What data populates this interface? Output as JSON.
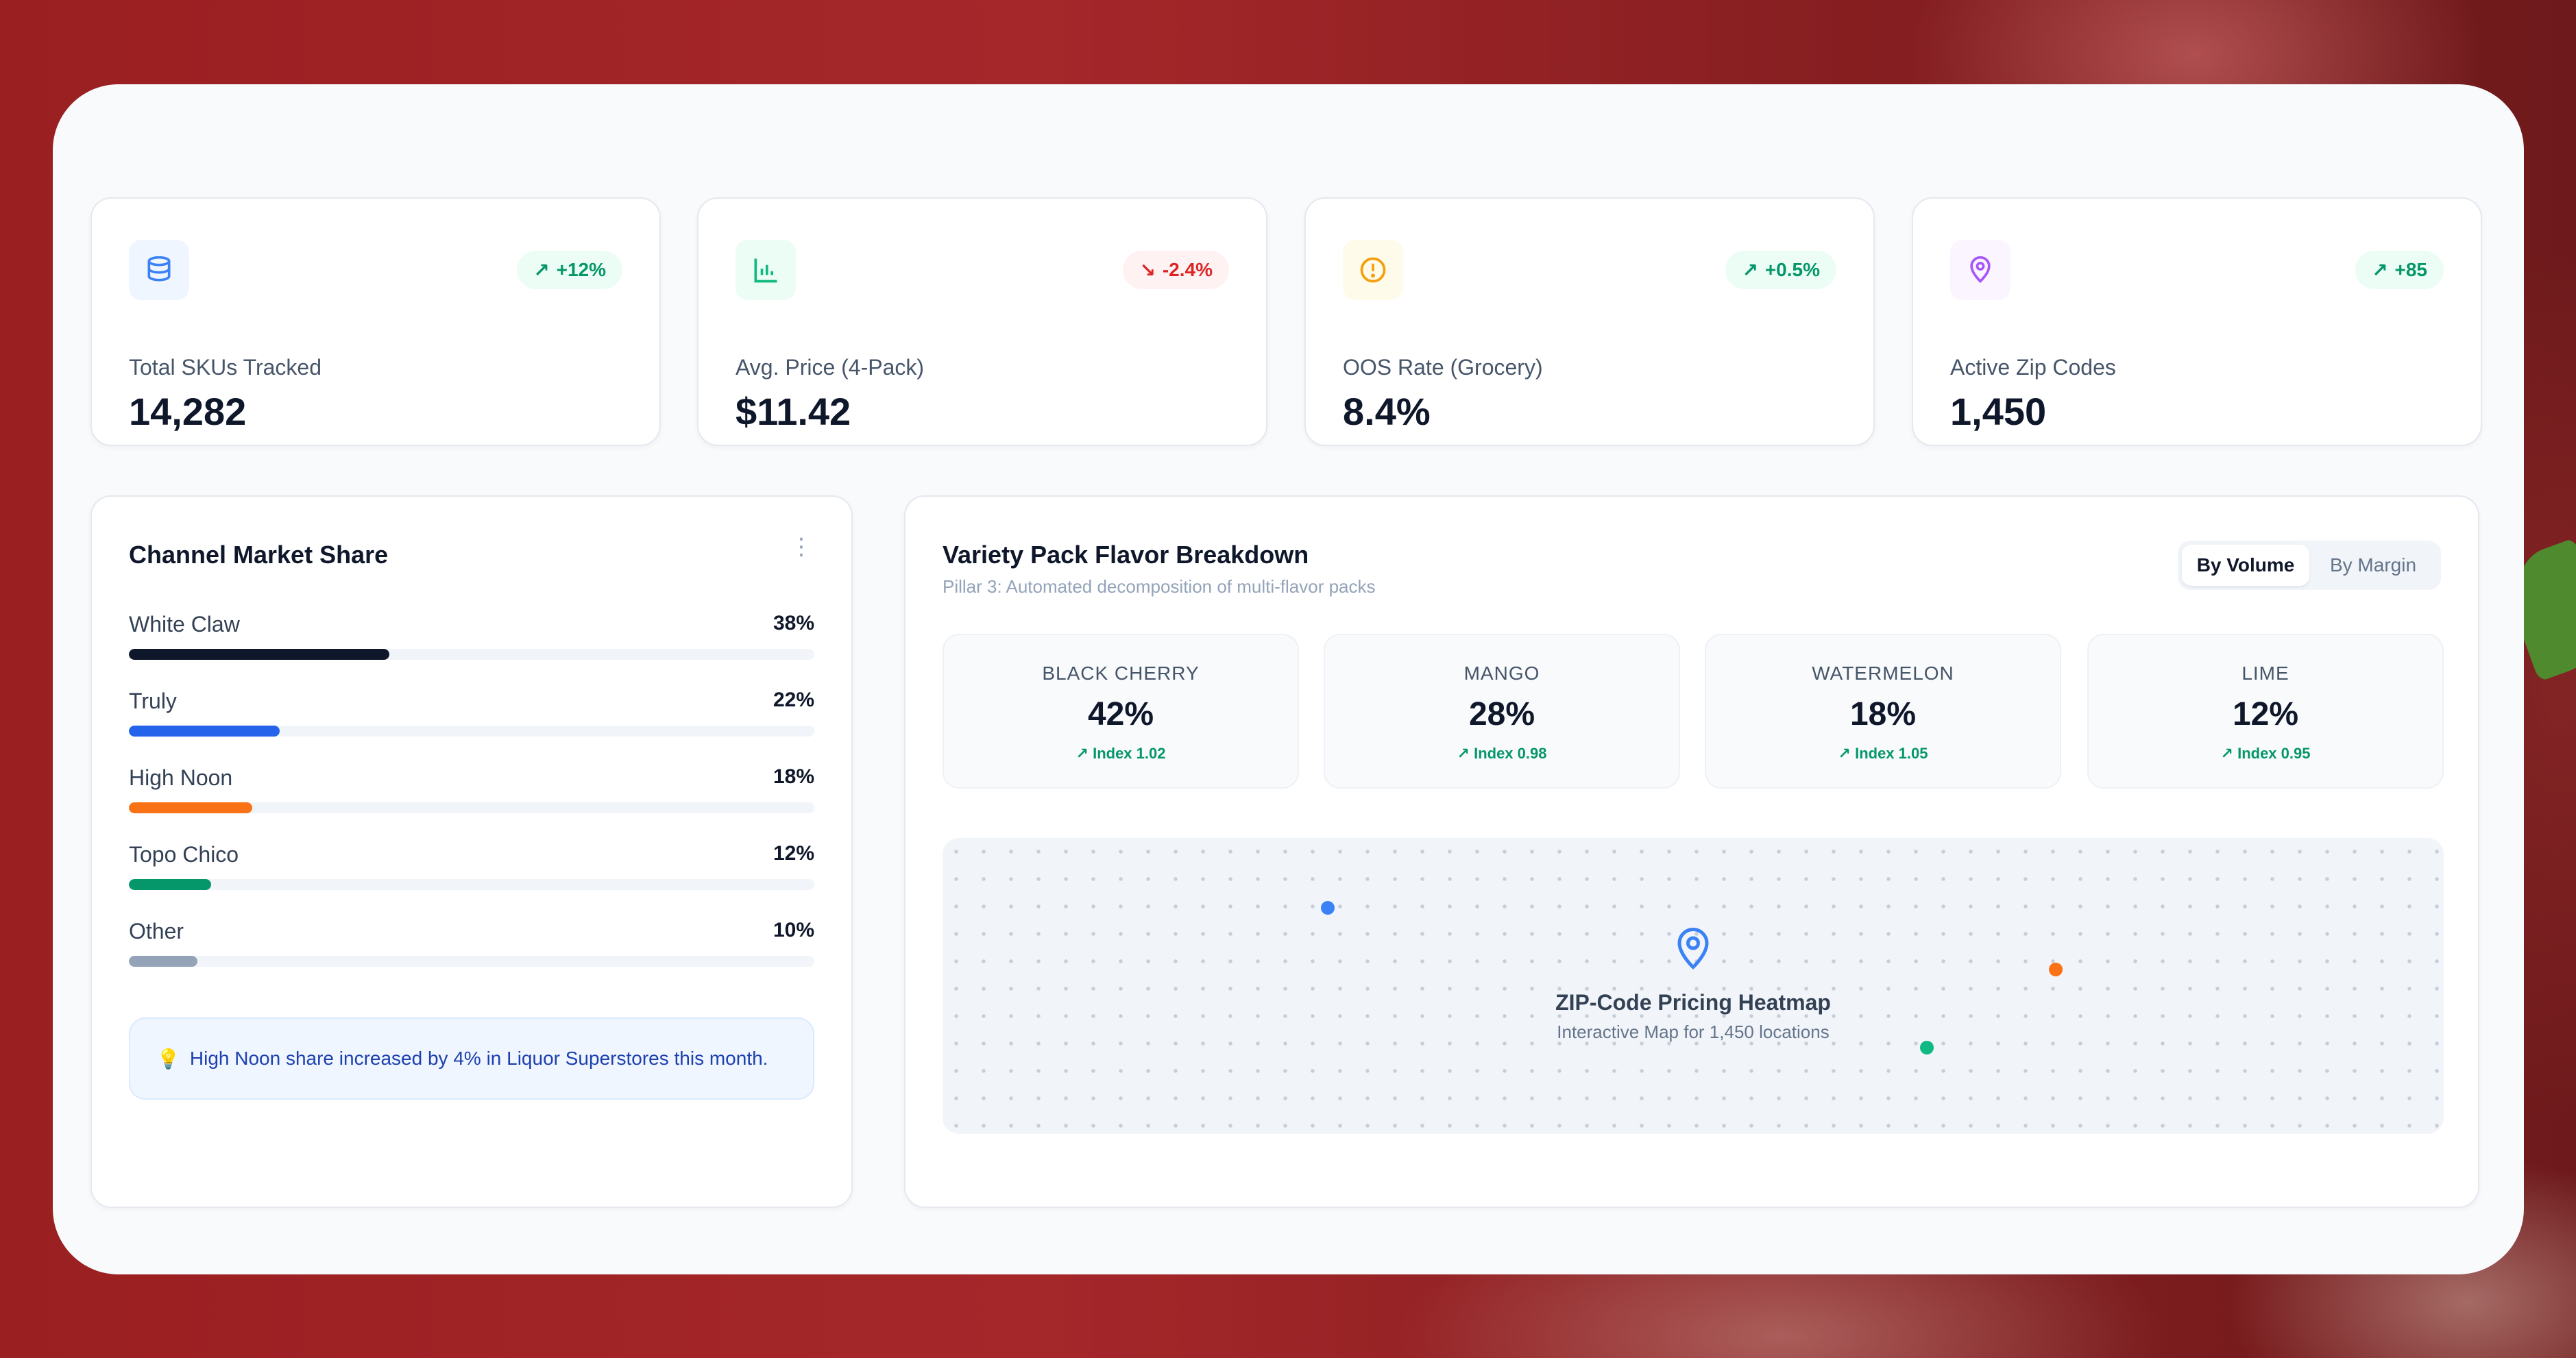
{
  "colors": {
    "accent_blue": "#2563eb",
    "positive": "#059669",
    "negative": "#dc2626"
  },
  "kpis": [
    {
      "label": "Total SKUs Tracked",
      "value": "14,282",
      "change": "+12%",
      "trend": "up",
      "icon": "database-icon",
      "icon_color": "#3b82f6"
    },
    {
      "label": "Avg. Price (4-Pack)",
      "value": "$11.42",
      "change": "-2.4%",
      "trend": "down",
      "icon": "bar-chart-icon",
      "icon_color": "#10b981"
    },
    {
      "label": "OOS Rate (Grocery)",
      "value": "8.4%",
      "change": "+0.5%",
      "trend": "up",
      "icon": "alert-circle-icon",
      "icon_color": "#f59e0b"
    },
    {
      "label": "Active Zip Codes",
      "value": "1,450",
      "change": "+85",
      "trend": "up",
      "icon": "map-pin-icon",
      "icon_color": "#a855f7"
    }
  ],
  "channel_share": {
    "title": "Channel Market Share",
    "items": [
      {
        "name": "White Claw",
        "pct_label": "38%",
        "share": 0.38,
        "color": "#0f172a"
      },
      {
        "name": "Truly",
        "pct_label": "22%",
        "share": 0.22,
        "color": "#2563eb"
      },
      {
        "name": "High Noon",
        "pct_label": "18%",
        "share": 0.18,
        "color": "#f97316"
      },
      {
        "name": "Topo Chico",
        "pct_label": "12%",
        "share": 0.12,
        "color": "#059669"
      },
      {
        "name": "Other",
        "pct_label": "10%",
        "share": 0.1,
        "color": "#94a3b8"
      }
    ],
    "insight": "High Noon share increased by 4% in Liquor Superstores this month."
  },
  "variety": {
    "title": "Variety Pack Flavor Breakdown",
    "subtitle": "Pillar 3: Automated decomposition of multi-flavor packs",
    "toggle": {
      "options": [
        "By Volume",
        "By Margin"
      ],
      "active": "By Volume"
    },
    "flavors": [
      {
        "name": "BLACK CHERRY",
        "pct": "42%",
        "index": "Index 1.02"
      },
      {
        "name": "MANGO",
        "pct": "28%",
        "index": "Index 0.98"
      },
      {
        "name": "WATERMELON",
        "pct": "18%",
        "index": "Index 1.05"
      },
      {
        "name": "LIME",
        "pct": "12%",
        "index": "Index 0.95"
      }
    ],
    "map": {
      "title": "ZIP-Code Pricing Heatmap",
      "subtitle": "Interactive Map for 1,450 locations",
      "dot_colors": [
        "#3b82f6",
        "#f97316",
        "#10b981"
      ]
    }
  }
}
